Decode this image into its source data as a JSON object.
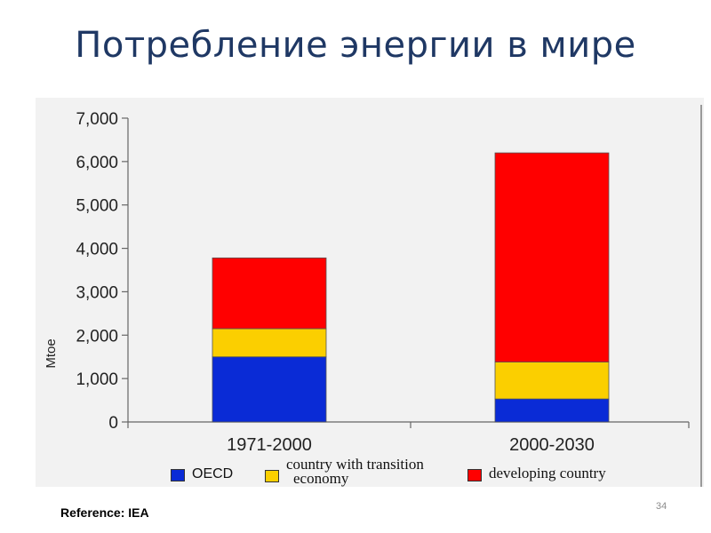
{
  "slide": {
    "title": "Потребление энергии в мире",
    "reference": "Reference: IEA",
    "page_number": "34"
  },
  "chart_data": {
    "type": "bar",
    "stacked": true,
    "categories": [
      "1971-2000",
      "2000-2030"
    ],
    "series": [
      {
        "name": "OECD",
        "values": [
          1500,
          530
        ],
        "color": "#0a2bd6"
      },
      {
        "name": "country with transition economy",
        "values": [
          650,
          850
        ],
        "color": "#fbcf00"
      },
      {
        "name": "developing country",
        "values": [
          1630,
          4820
        ],
        "color": "#ff0000"
      }
    ],
    "ylabel": "Mtoe",
    "xlabel": "",
    "ylim": [
      0,
      7000
    ],
    "yticks": [
      0,
      1000,
      2000,
      3000,
      4000,
      5000,
      6000,
      7000
    ],
    "ytick_labels": [
      "0",
      "1,000",
      "2,000",
      "3,000",
      "4,000",
      "5,000",
      "6,000",
      "7,000"
    ],
    "grid": false,
    "legend_position": "bottom"
  },
  "legend": {
    "oecd": "OECD",
    "transition_line1": "country with transition",
    "transition_line2": "economy",
    "developing": "developing country"
  }
}
